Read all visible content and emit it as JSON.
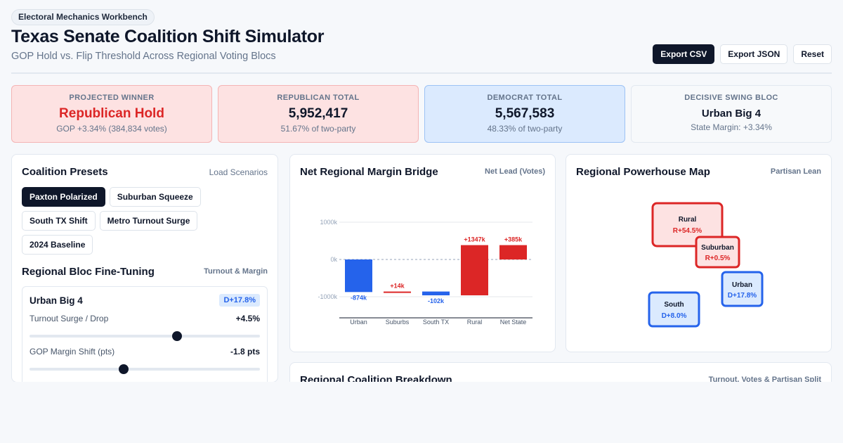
{
  "header": {
    "tag": "Electoral Mechanics Workbench",
    "title": "Texas Senate Coalition Shift Simulator",
    "subtitle": "GOP Hold vs. Flip Threshold Across Regional Voting Blocs",
    "actions": [
      "Export CSV",
      "Export JSON",
      "Reset"
    ]
  },
  "kpis": [
    {
      "label": "PROJECTED WINNER",
      "value": "Republican Hold",
      "sub": "GOP +3.34% (384,834 votes)",
      "tone": "red"
    },
    {
      "label": "REPUBLICAN TOTAL",
      "value": "5,952,417",
      "sub": "51.67% of two-party",
      "tone": "red"
    },
    {
      "label": "DEMOCRAT TOTAL",
      "value": "5,567,583",
      "sub": "48.33% of two-party",
      "tone": "blue"
    },
    {
      "label": "DECISIVE SWING BLOC",
      "value": "Urban Big 4",
      "sub": "State Margin: +3.34%",
      "tone": "gray"
    }
  ],
  "presets_panel": {
    "title": "Coalition Presets",
    "meta": "Load Scenarios",
    "presets": [
      "Paxton Polarized",
      "Suburban Squeeze",
      "South TX Shift",
      "Metro Turnout Surge",
      "2024 Baseline"
    ],
    "active_preset": "Paxton Polarized",
    "tuning_title": "Regional Bloc Fine-Tuning",
    "tuning_meta": "Turnout & Margin",
    "bloc": {
      "name": "Urban Big 4",
      "badge": "D+17.8%",
      "turnout_label": "Turnout Surge / Drop",
      "turnout_value": "+4.5%",
      "turnout_fraction": 0.64,
      "margin_label": "GOP Margin Shift (pts)",
      "margin_value": "-1.8 pts",
      "margin_fraction": 0.41
    }
  },
  "bridge": {
    "title": "Net Regional Margin Bridge",
    "meta": "Net Lead (Votes)"
  },
  "map": {
    "title": "Regional Powerhouse Map",
    "meta": "Partisan Lean",
    "regions": [
      {
        "name": "Rural",
        "lean": "R+54.5%",
        "party": "R"
      },
      {
        "name": "Suburban",
        "lean": "R+0.5%",
        "party": "R"
      },
      {
        "name": "Urban",
        "lean": "D+17.8%",
        "party": "D"
      },
      {
        "name": "South",
        "lean": "D+8.0%",
        "party": "D"
      }
    ]
  },
  "breakdown": {
    "title": "Regional Coalition Breakdown",
    "meta": "Turnout, Votes & Partisan Split"
  },
  "colors": {
    "republican": "#dc2626",
    "democrat": "#2563eb",
    "ink": "#0f172a"
  },
  "chart_data": {
    "type": "bar",
    "subtype": "waterfall",
    "categories": [
      "Urban",
      "Suburbs",
      "South TX",
      "Rural",
      "Net State"
    ],
    "values": [
      -874,
      14,
      -102,
      1347,
      385
    ],
    "labels": [
      "-874k",
      "+14k",
      "-102k",
      "+1347k",
      "+385k"
    ],
    "ylim": [
      -1500,
      1600
    ],
    "yticks": [
      1000,
      0,
      -1000
    ],
    "ytick_labels": [
      "1000k",
      "0k",
      "-1000k"
    ],
    "grid": true
  }
}
